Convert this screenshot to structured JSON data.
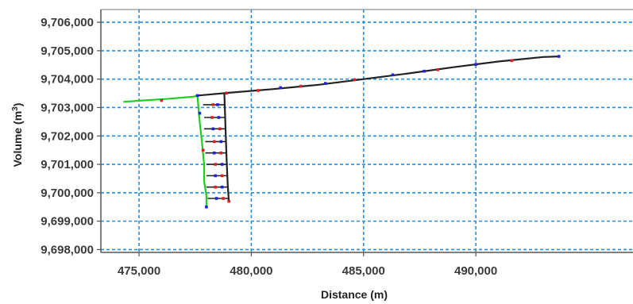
{
  "chart_data": {
    "type": "line",
    "title": "",
    "xlabel": "Distance (m)",
    "ylabel_main": "Volume (m",
    "ylabel_sup": "3",
    "ylabel_close": ")",
    "xlim": [
      473300,
      497000
    ],
    "ylim": [
      9697900,
      9706450
    ],
    "x_ticks": [
      475000,
      480000,
      485000,
      490000
    ],
    "x_tick_labels": [
      "475,000",
      "480,000",
      "485,000",
      "490,000"
    ],
    "y_ticks": [
      9698000,
      9699000,
      9700000,
      9701000,
      9702000,
      9703000,
      9704000,
      9705000,
      9706000
    ],
    "y_tick_labels": [
      "9,698,000",
      "9,699,000",
      "9,700,000",
      "9,701,000",
      "9,702,000",
      "9,703,000",
      "9,704,000",
      "9,705,000",
      "9,706,000"
    ],
    "grid": true,
    "colors": {
      "grid": "#1e90e6",
      "main_line": "#222222",
      "green_line": "#22cc22",
      "marker_red": "#e02020",
      "marker_blue": "#2020e0"
    },
    "series": [
      {
        "color": "#22cc22",
        "x": [
          474300,
          475200,
          476200,
          477400,
          477600
        ],
        "y": [
          9703200,
          9703250,
          9703300,
          9703380,
          9703420
        ]
      },
      {
        "color": "#222222",
        "x": [
          477600,
          479000,
          481000,
          483000,
          485000,
          487000,
          489000,
          491000,
          493000,
          493700
        ],
        "y": [
          9703420,
          9703520,
          9703650,
          9703800,
          9704000,
          9704200,
          9704420,
          9704620,
          9704780,
          9704800
        ]
      },
      {
        "color": "#22cc22",
        "x": [
          477600,
          477700,
          477800,
          477900,
          477900,
          478000,
          478000
        ],
        "y": [
          9703420,
          9702500,
          9701800,
          9701000,
          9700400,
          9699900,
          9699500
        ]
      },
      {
        "color": "#222222",
        "x": [
          478800,
          478850,
          478900,
          478950,
          479000
        ],
        "y": [
          9703500,
          9702300,
          9701200,
          9700300,
          9699700
        ]
      }
    ],
    "rungs": {
      "color": "#222222",
      "segments": [
        {
          "x": [
            477850,
            478800
          ],
          "y": [
            9703100,
            9703100
          ]
        },
        {
          "x": [
            477900,
            478850
          ],
          "y": [
            9702650,
            9702650
          ]
        },
        {
          "x": [
            477900,
            478850
          ],
          "y": [
            9702250,
            9702250
          ]
        },
        {
          "x": [
            477950,
            478900
          ],
          "y": [
            9701800,
            9701800
          ]
        },
        {
          "x": [
            477950,
            478900
          ],
          "y": [
            9701400,
            9701400
          ]
        },
        {
          "x": [
            478000,
            478950
          ],
          "y": [
            9701000,
            9701000
          ]
        },
        {
          "x": [
            478000,
            478950
          ],
          "y": [
            9700600,
            9700600
          ]
        },
        {
          "x": [
            478000,
            478950
          ],
          "y": [
            9700200,
            9700200
          ]
        },
        {
          "x": [
            478050,
            479000
          ],
          "y": [
            9699800,
            9699800
          ]
        }
      ]
    },
    "markers": [
      {
        "x": 476000,
        "y": 9703250,
        "c": "r"
      },
      {
        "x": 477600,
        "y": 9703420,
        "c": "b"
      },
      {
        "x": 478900,
        "y": 9703510,
        "c": "r"
      },
      {
        "x": 480300,
        "y": 9703600,
        "c": "r"
      },
      {
        "x": 481300,
        "y": 9703700,
        "c": "b"
      },
      {
        "x": 482200,
        "y": 9703750,
        "c": "r"
      },
      {
        "x": 483300,
        "y": 9703850,
        "c": "b"
      },
      {
        "x": 484600,
        "y": 9703980,
        "c": "r"
      },
      {
        "x": 486300,
        "y": 9704150,
        "c": "b"
      },
      {
        "x": 487700,
        "y": 9704280,
        "c": "b"
      },
      {
        "x": 488300,
        "y": 9704330,
        "c": "r"
      },
      {
        "x": 490000,
        "y": 9704520,
        "c": "b"
      },
      {
        "x": 491600,
        "y": 9704650,
        "c": "r"
      },
      {
        "x": 493700,
        "y": 9704800,
        "c": "b"
      },
      {
        "x": 478300,
        "y": 9703100,
        "c": "r"
      },
      {
        "x": 478500,
        "y": 9703100,
        "c": "b"
      },
      {
        "x": 478250,
        "y": 9702650,
        "c": "r"
      },
      {
        "x": 478550,
        "y": 9702650,
        "c": "b"
      },
      {
        "x": 478300,
        "y": 9702250,
        "c": "b"
      },
      {
        "x": 478600,
        "y": 9702250,
        "c": "r"
      },
      {
        "x": 478350,
        "y": 9701800,
        "c": "r"
      },
      {
        "x": 478650,
        "y": 9701800,
        "c": "b"
      },
      {
        "x": 478350,
        "y": 9701400,
        "c": "b"
      },
      {
        "x": 478650,
        "y": 9701400,
        "c": "r"
      },
      {
        "x": 478400,
        "y": 9701000,
        "c": "r"
      },
      {
        "x": 478700,
        "y": 9701000,
        "c": "b"
      },
      {
        "x": 478400,
        "y": 9700600,
        "c": "b"
      },
      {
        "x": 478700,
        "y": 9700600,
        "c": "r"
      },
      {
        "x": 478400,
        "y": 9700200,
        "c": "r"
      },
      {
        "x": 478700,
        "y": 9700200,
        "c": "b"
      },
      {
        "x": 478450,
        "y": 9699800,
        "c": "b"
      },
      {
        "x": 478750,
        "y": 9699800,
        "c": "r"
      },
      {
        "x": 477700,
        "y": 9702800,
        "c": "b"
      },
      {
        "x": 477850,
        "y": 9701500,
        "c": "r"
      },
      {
        "x": 478000,
        "y": 9699500,
        "c": "b"
      },
      {
        "x": 479000,
        "y": 9699700,
        "c": "r"
      }
    ]
  }
}
